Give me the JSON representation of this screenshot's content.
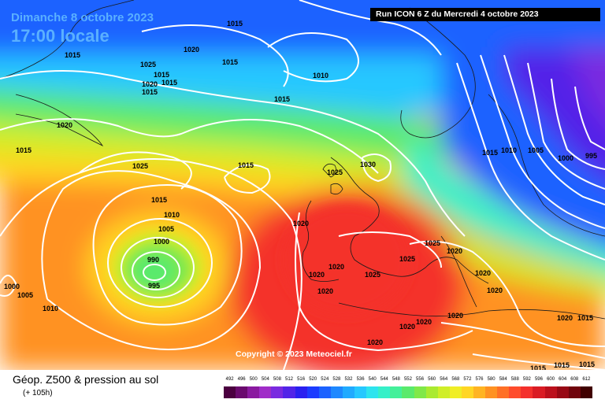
{
  "header": {
    "date": "Dimanche 8 octobre 2023",
    "time": "17:00 locale",
    "run": "Run ICON 6 Z du Mercredi 4 octobre 2023"
  },
  "map": {
    "copyright": "Copyright © 2023 Meteociel.fr",
    "isobar_labels": [
      {
        "id": "lbl-1015-a",
        "text": "1015"
      },
      {
        "id": "lbl-1015-b",
        "text": "1015"
      },
      {
        "id": "lbl-1015-c",
        "text": "1015"
      },
      {
        "id": "lbl-1020-a",
        "text": "1020"
      },
      {
        "id": "lbl-1025-a",
        "text": "1025"
      },
      {
        "id": "lbl-1020-b",
        "text": "1020"
      },
      {
        "id": "lbl-1015-d",
        "text": "1015"
      },
      {
        "id": "lbl-1015-e",
        "text": "1015"
      },
      {
        "id": "lbl-1010-a",
        "text": "1010"
      },
      {
        "id": "lbl-1020-c",
        "text": "1020"
      },
      {
        "id": "lbl-1015-f",
        "text": "1015"
      },
      {
        "id": "lbl-1025-b",
        "text": "1025"
      },
      {
        "id": "lbl-1015-g",
        "text": "1015"
      },
      {
        "id": "lbl-1015-h",
        "text": "1015"
      },
      {
        "id": "lbl-1010-b",
        "text": "1010"
      },
      {
        "id": "lbl-1005-a",
        "text": "1005"
      },
      {
        "id": "lbl-1000-a",
        "text": "1000"
      },
      {
        "id": "lbl-990",
        "text": "990"
      },
      {
        "id": "lbl-995-a",
        "text": "995"
      },
      {
        "id": "lbl-1000-b",
        "text": "1000"
      },
      {
        "id": "lbl-1005-b",
        "text": "1005"
      },
      {
        "id": "lbl-1010-c",
        "text": "1010"
      },
      {
        "id": "lbl-1015-i",
        "text": "1015"
      },
      {
        "id": "lbl-1025-c",
        "text": "1025"
      },
      {
        "id": "lbl-1030",
        "text": "1030"
      },
      {
        "id": "lbl-1020-d",
        "text": "1020"
      },
      {
        "id": "lbl-1020-e",
        "text": "1020"
      },
      {
        "id": "lbl-1025-d",
        "text": "1025"
      },
      {
        "id": "lbl-1020-f",
        "text": "1020"
      },
      {
        "id": "lbl-1020-g",
        "text": "1020"
      },
      {
        "id": "lbl-1025-e",
        "text": "1025"
      },
      {
        "id": "lbl-1025-f",
        "text": "1025"
      },
      {
        "id": "lbl-1020-h",
        "text": "1020"
      },
      {
        "id": "lbl-1020-i",
        "text": "1020"
      },
      {
        "id": "lbl-1020-j",
        "text": "1020"
      },
      {
        "id": "lbl-1020-k",
        "text": "1020"
      },
      {
        "id": "lbl-1020-l",
        "text": "1020"
      },
      {
        "id": "lbl-1020-m",
        "text": "1020"
      },
      {
        "id": "lbl-1020-n",
        "text": "1020"
      },
      {
        "id": "lbl-1020-o",
        "text": "1020"
      },
      {
        "id": "lbl-1015-j",
        "text": "1015"
      },
      {
        "id": "lbl-1015-k",
        "text": "1015"
      },
      {
        "id": "lbl-1015-l",
        "text": "1015"
      },
      {
        "id": "lbl-1015-m",
        "text": "1015"
      },
      {
        "id": "lbl-1010-d",
        "text": "1010"
      },
      {
        "id": "lbl-1005-c",
        "text": "1005"
      },
      {
        "id": "lbl-1000-c",
        "text": "1000"
      },
      {
        "id": "lbl-995-b",
        "text": "995"
      },
      {
        "id": "lbl-1015-n",
        "text": "1015"
      },
      {
        "id": "lbl-1015-o",
        "text": "1015"
      }
    ]
  },
  "footer": {
    "product": "Géop. Z500 & pression au sol",
    "lead": "(+ 105h)",
    "scale_labels": [
      "492",
      "496",
      "500",
      "504",
      "508",
      "512",
      "516",
      "520",
      "524",
      "528",
      "532",
      "536",
      "540",
      "544",
      "548",
      "552",
      "556",
      "560",
      "564",
      "568",
      "572",
      "576",
      "580",
      "584",
      "588",
      "592",
      "596",
      "600",
      "604",
      "608",
      "612"
    ],
    "scale_colors": [
      "#4b0040",
      "#6a0a6e",
      "#8a1aa0",
      "#a02cc8",
      "#7a2ae0",
      "#5224e8",
      "#2a20f0",
      "#1c3cff",
      "#1c62ff",
      "#1e88ff",
      "#20aaff",
      "#26c8ff",
      "#2ee4ee",
      "#36f0c8",
      "#44f09a",
      "#5aea6c",
      "#80e848",
      "#aaea30",
      "#d0ee28",
      "#f0ee26",
      "#ffd624",
      "#ffb422",
      "#ff9222",
      "#ff7026",
      "#ff4c2c",
      "#f4302c",
      "#da1c24",
      "#bc101c",
      "#980814",
      "#70040c",
      "#400000"
    ]
  }
}
